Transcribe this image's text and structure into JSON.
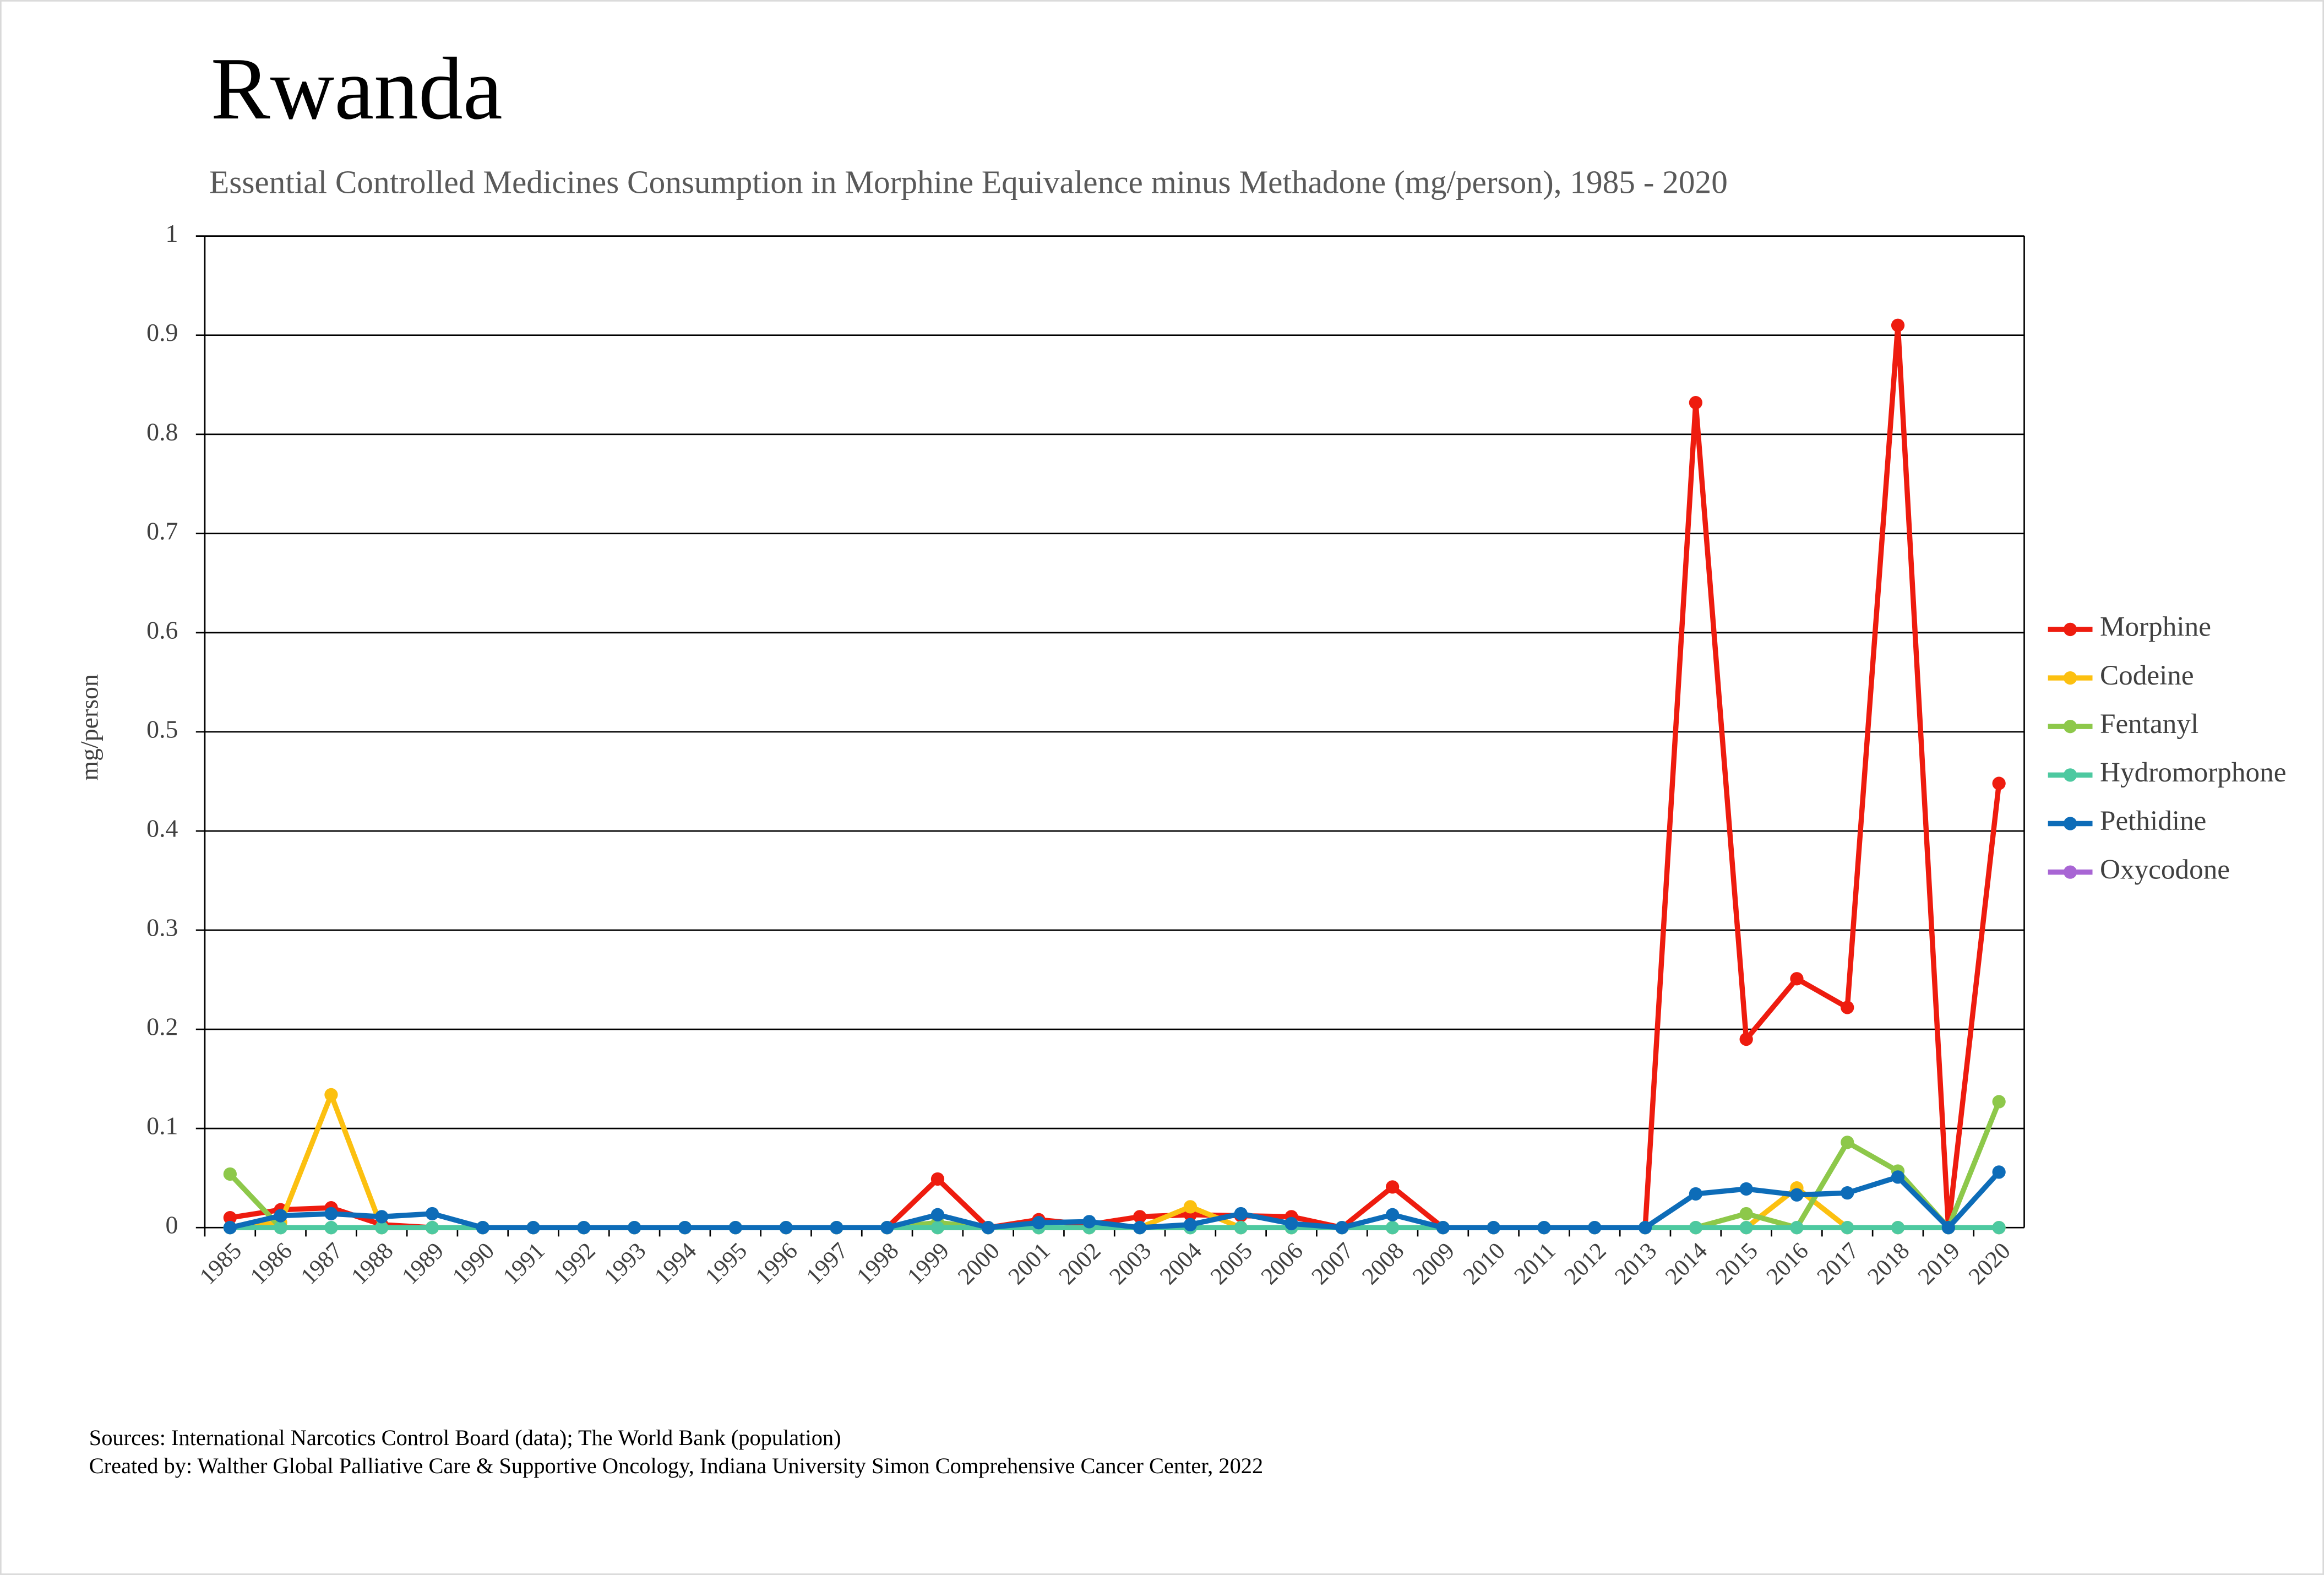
{
  "chart_data": {
    "type": "line",
    "title": "Rwanda",
    "subtitle": "Essential Controlled Medicines Consumption in Morphine Equivalence minus Methadone (mg/person), 1985 - 2020",
    "y_label": "mg/person",
    "notes": [
      "Sources: International Narcotics Control Board (data); The World Bank (population)",
      "Created by: Walther Global Palliative Care & Supportive Oncology, Indiana University Simon Comprehensive Cancer Center, 2022"
    ],
    "categories": [
      "1985",
      "1986",
      "1987",
      "1988",
      "1989",
      "1990",
      "1991",
      "1992",
      "1993",
      "1994",
      "1995",
      "1996",
      "1997",
      "1998",
      "1999",
      "2000",
      "2001",
      "2002",
      "2003",
      "2004",
      "2005",
      "2006",
      "2007",
      "2008",
      "2009",
      "2010",
      "2011",
      "2012",
      "2013",
      "2014",
      "2015",
      "2016",
      "2017",
      "2018",
      "2019",
      "2020"
    ],
    "series": [
      {
        "name": "Morphine",
        "color": "#ee1c0f",
        "values": [
          0.01,
          0.018,
          0.02,
          0.003,
          0,
          0,
          0,
          0,
          0,
          0,
          0,
          0,
          0,
          0,
          0.049,
          0,
          0.008,
          0.003,
          0.011,
          0.013,
          0.012,
          0.011,
          0,
          0.041,
          0,
          0,
          0,
          0,
          0,
          0.832,
          0.19,
          0.251,
          0.222,
          0.91,
          0,
          0.448
        ]
      },
      {
        "name": "Codeine",
        "color": "#fcc010",
        "values": [
          0,
          0.005,
          0.134,
          0,
          0,
          0,
          0,
          0,
          0,
          0,
          0,
          0,
          0,
          0,
          0,
          0,
          0,
          0,
          0,
          0.021,
          0,
          0,
          0,
          0,
          0,
          0,
          0,
          0,
          0,
          0,
          0,
          0.04,
          0,
          0,
          0,
          0
        ]
      },
      {
        "name": "Fentanyl",
        "color": "#8dc84a",
        "values": [
          0.054,
          0,
          0,
          0,
          0,
          0,
          0,
          0,
          0,
          0,
          0,
          0,
          0,
          0,
          0.005,
          0,
          0,
          0,
          0,
          0,
          0,
          0,
          0,
          0,
          0,
          0,
          0,
          0,
          0,
          0,
          0.014,
          0,
          0.086,
          0.057,
          0,
          0.127
        ]
      },
      {
        "name": "Hydromorphone",
        "color": "#4dc9a0",
        "values": [
          0,
          0,
          0,
          0,
          0,
          0,
          0,
          0,
          0,
          0,
          0,
          0,
          0,
          0,
          0,
          0,
          0,
          0,
          0,
          0,
          0,
          0,
          0,
          0,
          0,
          0,
          0,
          0,
          0,
          0,
          0,
          0,
          0,
          0,
          0,
          0
        ]
      },
      {
        "name": "Pethidine",
        "color": "#0d6cb8",
        "values": [
          0,
          0.012,
          0.014,
          0.011,
          0.014,
          0,
          0,
          0,
          0,
          0,
          0,
          0,
          0,
          0,
          0.013,
          0,
          0.005,
          0.006,
          0,
          0.003,
          0.014,
          0.004,
          0,
          0.013,
          0,
          0,
          0,
          0,
          0,
          0.034,
          0.039,
          0.033,
          0.035,
          0.051,
          0,
          0.056
        ]
      },
      {
        "name": "Oxycodone",
        "color": "#a865d4",
        "values": [
          null,
          null,
          null,
          null,
          null,
          null,
          null,
          null,
          null,
          null,
          null,
          null,
          null,
          null,
          null,
          null,
          null,
          null,
          null,
          null,
          null,
          null,
          null,
          null,
          null,
          null,
          null,
          null,
          null,
          null,
          null,
          null,
          null,
          null,
          null,
          null
        ]
      }
    ],
    "ylim": [
      0,
      1
    ],
    "yticks": [
      0,
      0.1,
      0.2,
      0.3,
      0.4,
      0.5,
      0.6,
      0.7,
      0.8,
      0.9,
      1
    ],
    "grid": true,
    "legend": "right"
  }
}
